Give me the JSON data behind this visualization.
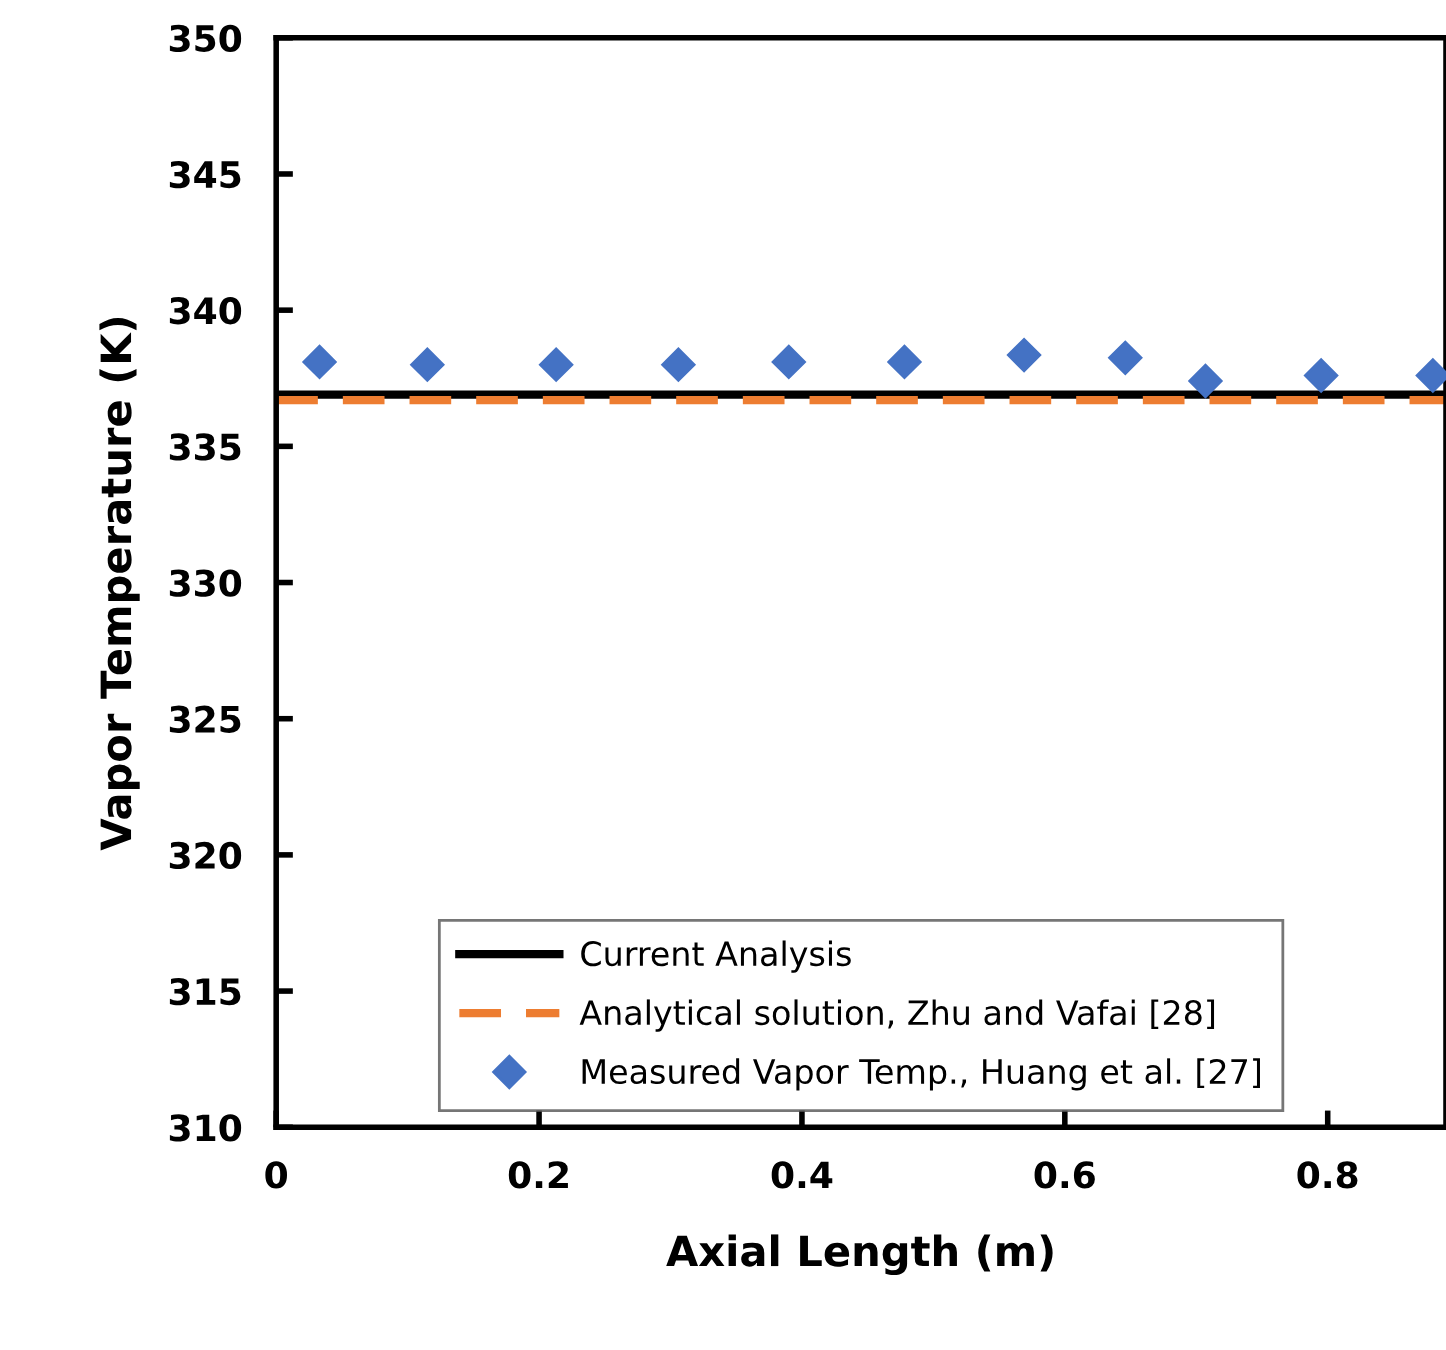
{
  "chart_data": {
    "type": "line",
    "xlabel": "Axial Length (m)",
    "ylabel": "Vapor Temperature (K)",
    "xlim": [
      0,
      0.89
    ],
    "ylim": [
      310,
      350
    ],
    "xticks": [
      0,
      0.2,
      0.4,
      0.6,
      0.8
    ],
    "yticks": [
      310,
      315,
      320,
      325,
      330,
      335,
      340,
      345,
      350
    ],
    "grid": false,
    "legend": "bottom",
    "series": [
      {
        "name": "Current Analysis",
        "color": "#000000",
        "line_style": "solid",
        "marker": "none",
        "x": [
          0,
          0.89
        ],
        "values": [
          336.9,
          336.9
        ]
      },
      {
        "name": "Analytical solution, Zhu and Vafai [28]",
        "color": "#ed7d31",
        "line_style": "dashed",
        "marker": "none",
        "x": [
          0,
          0.89
        ],
        "values": [
          336.7,
          336.7
        ]
      },
      {
        "name": "Measured Vapor Temp., Huang et al. [27]",
        "type": "scatter",
        "color": "#4472c4",
        "marker": "diamond",
        "x": [
          0.033,
          0.115,
          0.213,
          0.306,
          0.39,
          0.478,
          0.569,
          0.646,
          0.707,
          0.795,
          0.88
        ],
        "values": [
          338.1,
          338.0,
          338.0,
          338.0,
          338.1,
          338.1,
          338.35,
          338.25,
          337.4,
          337.6,
          337.6
        ]
      }
    ]
  }
}
